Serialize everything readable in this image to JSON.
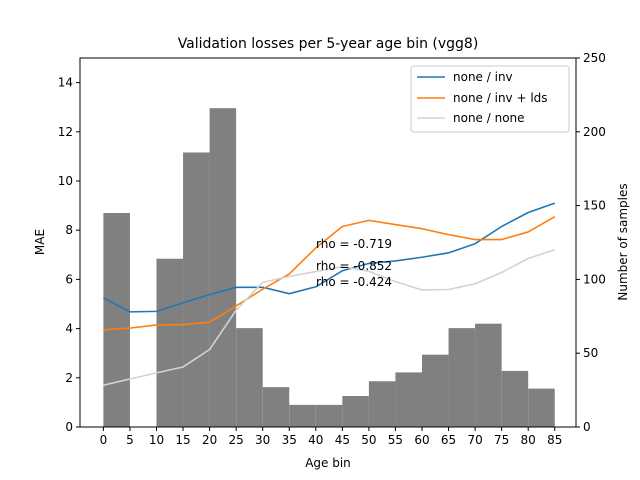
{
  "chart_data": {
    "type": "bar+line",
    "title": "Validation losses per 5-year age bin (vgg8)",
    "xlabel": "Age bin",
    "ylabel": "MAE",
    "y2label": "Number of samples",
    "ylim": [
      0,
      15
    ],
    "y2lim": [
      0,
      250
    ],
    "categories": [
      0,
      5,
      10,
      15,
      20,
      25,
      30,
      35,
      40,
      45,
      50,
      55,
      60,
      65,
      70,
      75,
      80,
      85
    ],
    "yticks": [
      0,
      2,
      4,
      6,
      8,
      10,
      12,
      14
    ],
    "y2ticks": [
      0,
      50,
      100,
      150,
      200,
      250
    ],
    "bars": {
      "name": "Number of samples",
      "color": "#808080",
      "values": [
        145,
        0,
        114,
        186,
        216,
        67,
        27,
        15,
        15,
        21,
        31,
        37,
        49,
        67,
        70,
        38,
        26,
        0
      ]
    },
    "series": [
      {
        "name": "none / inv",
        "color": "#1f77b4",
        "values": [
          5.25,
          4.68,
          4.7,
          5.05,
          5.38,
          5.68,
          5.68,
          5.42,
          5.7,
          6.35,
          6.65,
          6.75,
          6.9,
          7.08,
          7.45,
          8.15,
          8.72,
          9.1
        ]
      },
      {
        "name": "none / inv + lds",
        "color": "#ff7f0e",
        "values": [
          3.95,
          4.02,
          4.15,
          4.16,
          4.26,
          4.92,
          5.6,
          6.22,
          7.28,
          8.15,
          8.4,
          8.23,
          8.06,
          7.82,
          7.62,
          7.62,
          7.93,
          8.55
        ]
      },
      {
        "name": "none / none",
        "color": "#d3d3d3",
        "values": [
          1.7,
          1.95,
          2.2,
          2.44,
          3.15,
          4.75,
          5.88,
          6.12,
          6.32,
          6.52,
          6.33,
          5.91,
          5.57,
          5.59,
          5.82,
          6.28,
          6.85,
          7.21
        ]
      }
    ],
    "annotations": [
      "rho = -0.719",
      "rho = -0.852",
      "rho = -0.424"
    ],
    "legend": "top-right",
    "grid": false
  }
}
